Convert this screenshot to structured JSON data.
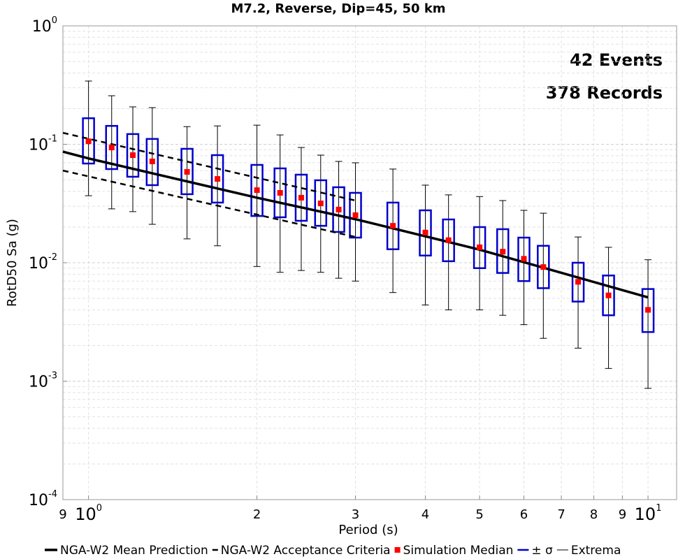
{
  "chart_data": {
    "type": "boxplot",
    "title": "M7.2, Reverse, Dip=45, 50 km",
    "x_label": "Period (s)",
    "y_label": "RotD50 Sa (g)",
    "log_x": true,
    "log_y": true,
    "grid": true,
    "legend": "bottom",
    "xlim": [
      0.9,
      11.25
    ],
    "ylim": [
      0.0001,
      1
    ],
    "xticks": [
      {
        "value": 0.9,
        "label": "9"
      },
      {
        "value": 1,
        "label": "10^0"
      },
      2,
      3,
      4,
      5,
      6,
      7,
      8,
      9,
      {
        "value": 10,
        "label": "10^1"
      }
    ],
    "yticks": [
      {
        "value": 0.0001,
        "label": "10^-4"
      },
      {
        "value": 0.001,
        "label": "10^-3"
      },
      {
        "value": 0.01,
        "label": "10^-2"
      },
      {
        "value": 0.1,
        "label": "10^-1"
      },
      {
        "value": 1,
        "label": "10^0"
      }
    ],
    "annotations": [
      "42 Events",
      "378 Records"
    ],
    "series": [
      {
        "name": "NGA-W2 Mean Prediction",
        "color": "#000000",
        "style": "line",
        "x": [
          0.9,
          1,
          2,
          3,
          5,
          10
        ],
        "values": [
          0.0867,
          0.076,
          0.0354,
          0.0233,
          0.0129,
          0.0051
        ]
      },
      {
        "name": "NGA-W2 Acceptance Criteria",
        "color": "#000000",
        "style": "dashed",
        "x": [
          0.9,
          3.0
        ],
        "upper": [
          0.125,
          0.0335
        ],
        "lower": [
          0.06,
          0.0165
        ]
      },
      {
        "name": "Simulation Median",
        "color": "#ff0000",
        "style": "marker",
        "x": [
          1.0,
          1.1,
          1.2,
          1.3,
          1.5,
          1.7,
          2.0,
          2.2,
          2.4,
          2.6,
          2.8,
          3.0,
          3.5,
          4.0,
          4.4,
          5.0,
          5.5,
          6.0,
          6.5,
          7.5,
          8.5,
          10
        ],
        "values": [
          0.106,
          0.094,
          0.081,
          0.0717,
          0.0585,
          0.051,
          0.041,
          0.0389,
          0.0354,
          0.0317,
          0.0281,
          0.0252,
          0.0205,
          0.018,
          0.0155,
          0.0135,
          0.0124,
          0.0108,
          0.0092,
          0.0069,
          0.0053,
          0.004
        ]
      },
      {
        "name": "± σ",
        "color": "#0000cc",
        "style": "box",
        "x": [
          1.0,
          1.1,
          1.2,
          1.3,
          1.5,
          1.7,
          2.0,
          2.2,
          2.4,
          2.6,
          2.8,
          3.0,
          3.5,
          4.0,
          4.4,
          5.0,
          5.5,
          6.0,
          6.5,
          7.5,
          8.5,
          10
        ],
        "upper": [
          0.166,
          0.143,
          0.122,
          0.111,
          0.0916,
          0.081,
          0.067,
          0.0626,
          0.0554,
          0.0497,
          0.0434,
          0.0389,
          0.0322,
          0.0277,
          0.0232,
          0.02,
          0.0192,
          0.0163,
          0.0139,
          0.01,
          0.0078,
          0.006
        ],
        "lower": [
          0.0688,
          0.0618,
          0.0532,
          0.0452,
          0.0379,
          0.0322,
          0.0248,
          0.0242,
          0.0226,
          0.0205,
          0.0182,
          0.0163,
          0.013,
          0.0115,
          0.0103,
          0.009,
          0.0082,
          0.007,
          0.0061,
          0.0047,
          0.0036,
          0.0026
        ]
      },
      {
        "name": "Extrema",
        "color": "#000000",
        "style": "whisker",
        "x": [
          1.0,
          1.1,
          1.2,
          1.3,
          1.5,
          1.7,
          2.0,
          2.2,
          2.4,
          2.6,
          2.8,
          3.0,
          3.5,
          4.0,
          4.4,
          5.0,
          5.5,
          6.0,
          6.5,
          7.5,
          8.5,
          10
        ],
        "upper": [
          0.342,
          0.257,
          0.207,
          0.204,
          0.141,
          0.143,
          0.145,
          0.12,
          0.094,
          0.081,
          0.0717,
          0.0698,
          0.0618,
          0.0452,
          0.0374,
          0.0362,
          0.0335,
          0.0277,
          0.0262,
          0.0165,
          0.0135,
          0.0106
        ],
        "lower": [
          0.0368,
          0.0285,
          0.027,
          0.0211,
          0.0159,
          0.0139,
          0.0093,
          0.0083,
          0.0086,
          0.0083,
          0.0074,
          0.007,
          0.0056,
          0.0044,
          0.004,
          0.004,
          0.0036,
          0.003,
          0.0023,
          0.0019,
          0.00128,
          0.00087
        ]
      }
    ]
  }
}
